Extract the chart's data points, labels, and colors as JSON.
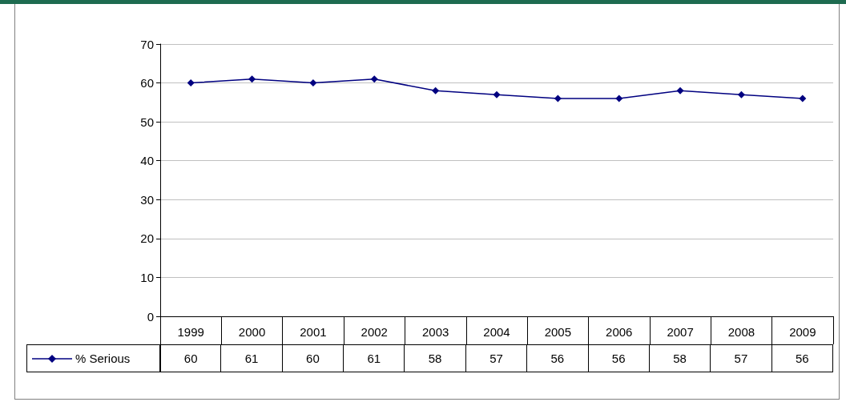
{
  "chart_data": {
    "type": "line",
    "categories": [
      "1999",
      "2000",
      "2001",
      "2002",
      "2003",
      "2004",
      "2005",
      "2006",
      "2007",
      "2008",
      "2009"
    ],
    "series": [
      {
        "name": "% Serious",
        "color": "#000080",
        "values": [
          60,
          61,
          60,
          61,
          58,
          57,
          56,
          56,
          58,
          57,
          56
        ]
      }
    ],
    "ylim": [
      0,
      70
    ],
    "yticks": [
      0,
      10,
      20,
      30,
      40,
      50,
      60,
      70
    ],
    "grid": "y",
    "legend": "bottom left",
    "marker": "diamond",
    "line_style": "solid",
    "data_labels": true
  }
}
